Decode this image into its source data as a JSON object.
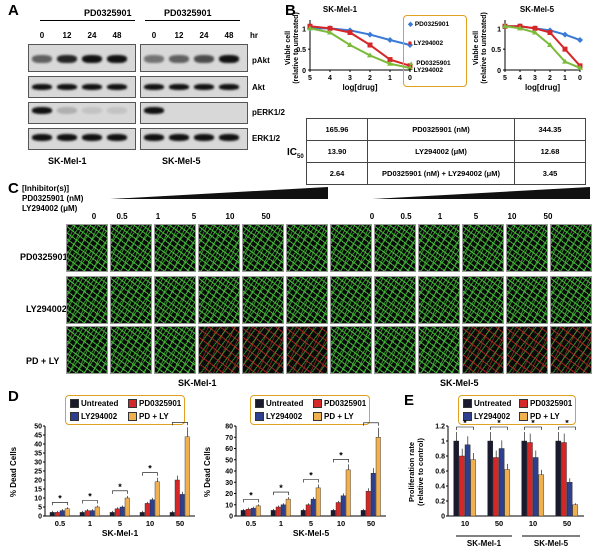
{
  "panels": {
    "A": "A",
    "B": "B",
    "C": "C",
    "D": "D",
    "E": "E"
  },
  "colors": {
    "untreated": "#1a1a2e",
    "pd": "#d62728",
    "ly": "#2f3f8f",
    "pdly": "#f0b050",
    "curve_pd": "#3a7bd5",
    "curve_ly": "#d62728",
    "curve_pdly": "#7cbb3a",
    "legend_border": "#e0a020"
  },
  "panelA": {
    "group1_drug": "PD0325901",
    "group2_drug": "PD0325901",
    "timepoints": [
      "0",
      "12",
      "24",
      "48"
    ],
    "hr_label": "hr",
    "blots": [
      "pAkt",
      "Akt",
      "pERK1/2",
      "ERK1/2"
    ],
    "cell1": "SK-Mel-1",
    "cell2": "SK-Mel-5"
  },
  "panelB": {
    "title1": "SK-Mel-1",
    "title2": "SK-Mel-5",
    "ylabel": "Viable cell\n(relative to untreated)",
    "xlabel": "log[drug]",
    "xticks": [
      "5",
      "4",
      "3",
      "2",
      "1",
      "0"
    ],
    "yticks": [
      "0",
      "0.5",
      "1"
    ],
    "legend": [
      "PD0325901",
      "LY294002",
      "PD0325901\n+ LY294002"
    ],
    "ic50_label": "IC",
    "ic50_sub": "50",
    "ic50_rows": [
      {
        "left": "165.96",
        "mid": "PD0325901 (nM)",
        "right": "344.35"
      },
      {
        "left": "13.90",
        "mid": "LY294002 (μM)",
        "right": "12.68"
      },
      {
        "left": "2.64",
        "mid": "PD0325901 (nM) + LY294002 (μM)",
        "right": "3.45"
      }
    ]
  },
  "panelC": {
    "header1": "[Inhibitor(s)]",
    "header2": "PD0325901 (nM)",
    "header3": "LY294002 (μM)",
    "concs": [
      "0",
      "0.5",
      "1",
      "5",
      "10",
      "50"
    ],
    "rows": [
      "PD0325901",
      "LY294002",
      "PD + LY"
    ],
    "cell1": "SK-Mel-1",
    "cell2": "SK-Mel-5"
  },
  "panelD": {
    "ylabel": "% Dead Cells",
    "legend": [
      "Untreated",
      "PD0325901",
      "LY294002",
      "PD + LY"
    ],
    "categories": [
      "0.5",
      "1",
      "5",
      "10",
      "50"
    ],
    "cell1": "SK-Mel-1",
    "cell2": "SK-Mel-5",
    "yticks1": [
      "0",
      "5",
      "10",
      "15",
      "20",
      "25",
      "30",
      "35",
      "40",
      "45",
      "50"
    ],
    "yticks2": [
      "0",
      "10",
      "20",
      "30",
      "40",
      "50",
      "60",
      "70",
      "80"
    ],
    "sig": "*"
  },
  "panelE": {
    "ylabel": "Proliferation rate\n(relative to control)",
    "legend": [
      "Untreated",
      "PD0325901",
      "LY294002",
      "PD + LY"
    ],
    "categories": [
      "10",
      "50",
      "10",
      "50"
    ],
    "cell1": "SK-Mel-1",
    "cell2": "SK-Mel-5",
    "yticks": [
      "0",
      "0.2",
      "0.4",
      "0.6",
      "0.8",
      "1",
      "1.2"
    ],
    "sig": "*"
  },
  "chart_data": [
    {
      "type": "line",
      "title": "SK-Mel-1",
      "xlabel": "log[drug]",
      "ylabel": "Viable cell\n(relative to untreated)",
      "x": [
        5,
        4,
        3,
        2,
        1,
        0
      ],
      "series": [
        {
          "name": "PD0325901",
          "values": [
            1.0,
            1.0,
            0.95,
            0.85,
            0.72,
            0.6
          ]
        },
        {
          "name": "LY294002",
          "values": [
            1.05,
            1.0,
            0.9,
            0.6,
            0.25,
            0.1
          ]
        },
        {
          "name": "PD0325901 + LY294002",
          "values": [
            1.0,
            0.9,
            0.6,
            0.35,
            0.15,
            0.05
          ]
        }
      ],
      "ylim": [
        0,
        1.2
      ]
    },
    {
      "type": "line",
      "title": "SK-Mel-5",
      "xlabel": "log[drug]",
      "ylabel": "Viable cell\n(relative to untreated)",
      "x": [
        5,
        4,
        3,
        2,
        1,
        0
      ],
      "series": [
        {
          "name": "PD0325901",
          "values": [
            1.05,
            1.05,
            1.0,
            0.95,
            0.85,
            0.72
          ]
        },
        {
          "name": "LY294002",
          "values": [
            1.05,
            1.05,
            1.0,
            0.9,
            0.5,
            0.1
          ]
        },
        {
          "name": "PD0325901 + LY294002",
          "values": [
            1.05,
            1.0,
            0.9,
            0.6,
            0.2,
            0.05
          ]
        }
      ],
      "ylim": [
        0,
        1.2
      ]
    },
    {
      "type": "bar",
      "xlabel": "SK-Mel-1",
      "ylabel": "% Dead Cells",
      "categories": [
        "0.5",
        "1",
        "5",
        "10",
        "50"
      ],
      "series": [
        {
          "name": "Untreated",
          "values": [
            2,
            2,
            2,
            2,
            2
          ]
        },
        {
          "name": "PD0325901",
          "values": [
            2,
            3,
            4,
            7,
            20
          ]
        },
        {
          "name": "LY294002",
          "values": [
            3,
            3,
            5,
            9,
            12
          ]
        },
        {
          "name": "PD + LY",
          "values": [
            4,
            5,
            10,
            19,
            44
          ]
        }
      ],
      "ylim": [
        0,
        50
      ]
    },
    {
      "type": "bar",
      "xlabel": "SK-Mel-5",
      "ylabel": "% Dead Cells",
      "categories": [
        "0.5",
        "1",
        "5",
        "10",
        "50"
      ],
      "series": [
        {
          "name": "Untreated",
          "values": [
            5,
            5,
            5,
            5,
            5
          ]
        },
        {
          "name": "PD0325901",
          "values": [
            6,
            8,
            10,
            12,
            22
          ]
        },
        {
          "name": "LY294002",
          "values": [
            7,
            10,
            15,
            18,
            38
          ]
        },
        {
          "name": "PD + LY",
          "values": [
            9,
            15,
            25,
            41,
            70
          ]
        }
      ],
      "ylim": [
        0,
        80
      ]
    },
    {
      "type": "bar",
      "ylabel": "Proliferation rate\n(relative to control)",
      "categories": [
        "10",
        "50",
        "10",
        "50"
      ],
      "series": [
        {
          "name": "Untreated",
          "values": [
            1.0,
            1.0,
            1.0,
            1.0
          ]
        },
        {
          "name": "PD0325901",
          "values": [
            0.8,
            0.78,
            0.98,
            0.98
          ]
        },
        {
          "name": "LY294002",
          "values": [
            0.95,
            0.9,
            0.78,
            0.45
          ]
        },
        {
          "name": "PD + LY",
          "values": [
            0.75,
            0.62,
            0.55,
            0.15
          ]
        }
      ],
      "ylim": [
        0,
        1.2
      ]
    }
  ]
}
